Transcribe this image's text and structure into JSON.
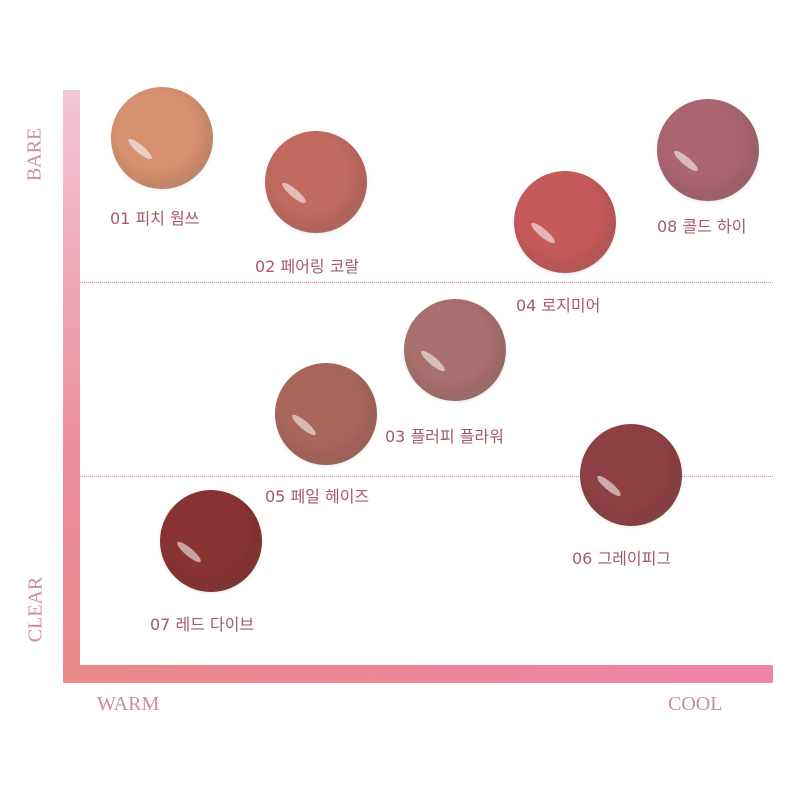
{
  "axes": {
    "top": "BARE",
    "bottom": "CLEAR",
    "left": "WARM",
    "right": "COOL"
  },
  "swatches": [
    {
      "label": "01 피치 웜쓰",
      "color": "#d4906f"
    },
    {
      "label": "02 페어링 코랄",
      "color": "#c06a60"
    },
    {
      "label": "03 플러피 플라워",
      "color": "#a8706e"
    },
    {
      "label": "04 로지미어",
      "color": "#c45b5a"
    },
    {
      "label": "05 페일 헤이즈",
      "color": "#a9675b"
    },
    {
      "label": "06 그레이피그",
      "color": "#8f4044"
    },
    {
      "label": "07 레드 다이브",
      "color": "#8a3333"
    },
    {
      "label": "08 콜드 하이",
      "color": "#a96672"
    }
  ]
}
